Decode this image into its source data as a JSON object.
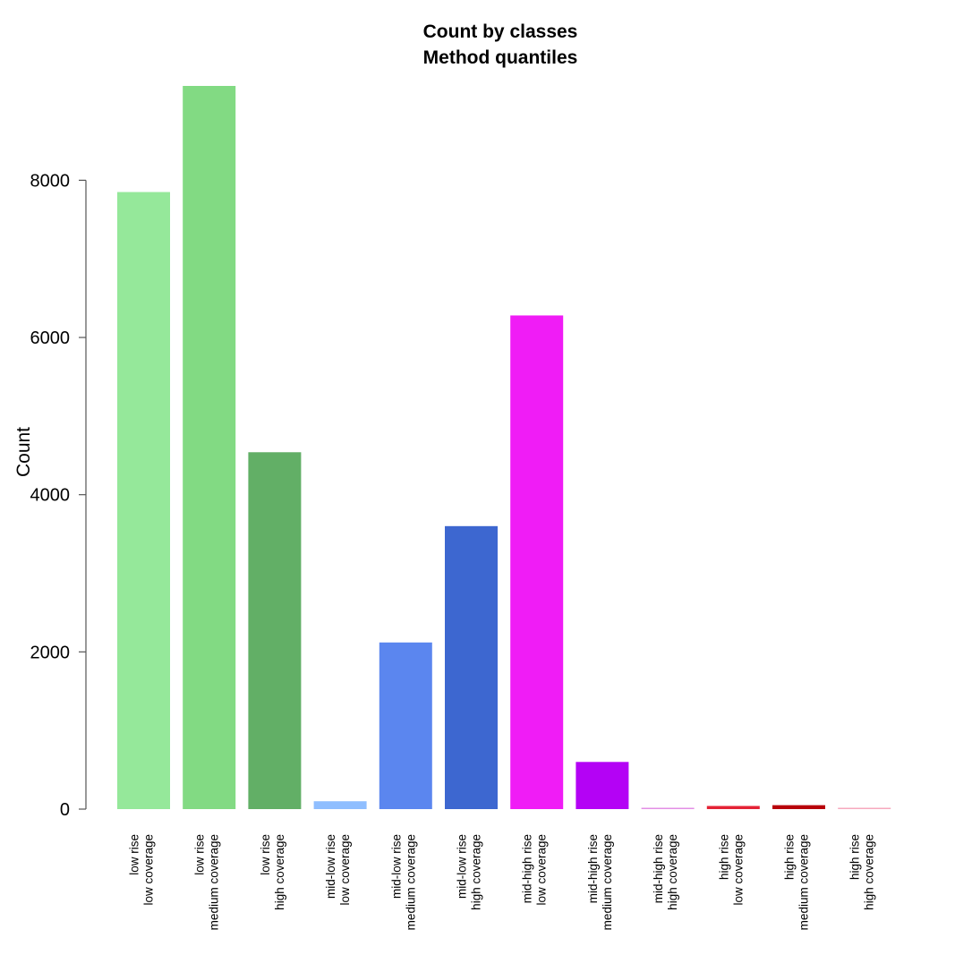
{
  "chart_data": {
    "type": "bar",
    "title": "Count by classes",
    "subtitle": "Method quantiles",
    "xlabel": "",
    "ylabel": "Count",
    "ylim": [
      0,
      9200
    ],
    "yticks": [
      0,
      2000,
      4000,
      6000,
      8000
    ],
    "grid": false,
    "legend": "none",
    "categories": [
      [
        "low rise",
        "low coverage"
      ],
      [
        "low rise",
        "medium coverage"
      ],
      [
        "low rise",
        "high coverage"
      ],
      [
        "mid-low rise",
        "low coverage"
      ],
      [
        "mid-low rise",
        "medium coverage"
      ],
      [
        "mid-low rise",
        "high coverage"
      ],
      [
        "mid-high rise",
        "low coverage"
      ],
      [
        "mid-high rise",
        "medium coverage"
      ],
      [
        "mid-high rise",
        "high coverage"
      ],
      [
        "high rise",
        "low coverage"
      ],
      [
        "high rise",
        "medium coverage"
      ],
      [
        "high rise",
        "high coverage"
      ]
    ],
    "values": [
      7850,
      9200,
      4540,
      100,
      2120,
      3600,
      6280,
      600,
      10,
      40,
      50,
      5
    ],
    "colors": [
      "#95E89A",
      "#82DA83",
      "#62AF66",
      "#8FBEFF",
      "#5B86EF",
      "#3D67D0",
      "#F01CF6",
      "#B402F5",
      "#E38FE6",
      "#E42235",
      "#B8000A",
      "#F7A9BE"
    ]
  }
}
